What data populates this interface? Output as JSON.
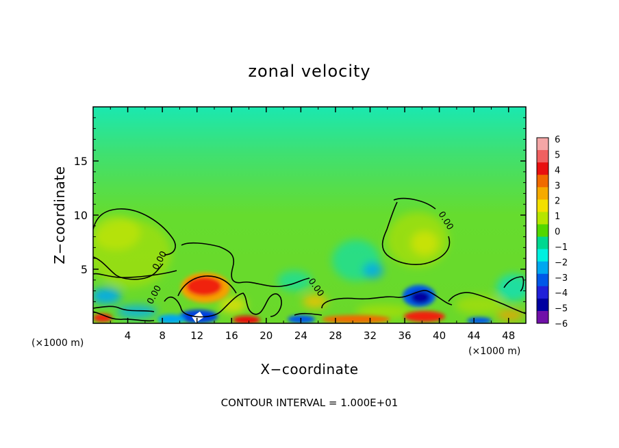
{
  "chart_data": {
    "type": "heatmap",
    "title": "zonal velocity",
    "xlabel": "X−coordinate",
    "ylabel": "Z−coordinate",
    "x_units_left": "(×1000 m)",
    "x_units_right": "(×1000 m)",
    "xlim": [
      0,
      50
    ],
    "ylim": [
      0,
      20
    ],
    "x_ticks": [
      "4",
      "8",
      "12",
      "16",
      "20",
      "24",
      "28",
      "32",
      "36",
      "40",
      "44",
      "48"
    ],
    "x_tick_values": [
      4,
      8,
      12,
      16,
      20,
      24,
      28,
      32,
      36,
      40,
      44,
      48
    ],
    "y_ticks": [
      "5",
      "10",
      "15"
    ],
    "y_tick_values": [
      5,
      10,
      15
    ],
    "contour_label": "0.00",
    "footer": "CONTOUR INTERVAL = 1.000E+01",
    "colorbar": {
      "labels": [
        "6",
        "5",
        "4",
        "3",
        "2",
        "1",
        "0",
        "−1",
        "−2",
        "−3",
        "−4",
        "−5",
        "−6"
      ],
      "range": [
        -6,
        6
      ],
      "colors": [
        "#f4a6a6",
        "#f06060",
        "#e81010",
        "#f06a00",
        "#f5aa00",
        "#f3e000",
        "#b6e600",
        "#52d800",
        "#00d890",
        "#00f0e0",
        "#00a8f0",
        "#0058e8",
        "#2020d8",
        "#0000a0",
        "#7010a8"
      ]
    },
    "features": [
      {
        "x": 12.5,
        "z": 3.3,
        "value": 5
      },
      {
        "x": 37.7,
        "z": 2.4,
        "value": -5
      },
      {
        "x": 37.0,
        "z": 7.3,
        "value": 2
      },
      {
        "x": 3.5,
        "z": 7.5,
        "value": 2
      },
      {
        "x": 33.0,
        "z": 5.0,
        "value": -3
      },
      {
        "x": 12.0,
        "z": 0.8,
        "value": -5
      },
      {
        "x": 2.0,
        "z": 2.5,
        "value": -3
      },
      {
        "x": 38.5,
        "z": 0.5,
        "value": 4
      },
      {
        "x": 47.5,
        "z": 3.5,
        "value": -3
      }
    ]
  }
}
